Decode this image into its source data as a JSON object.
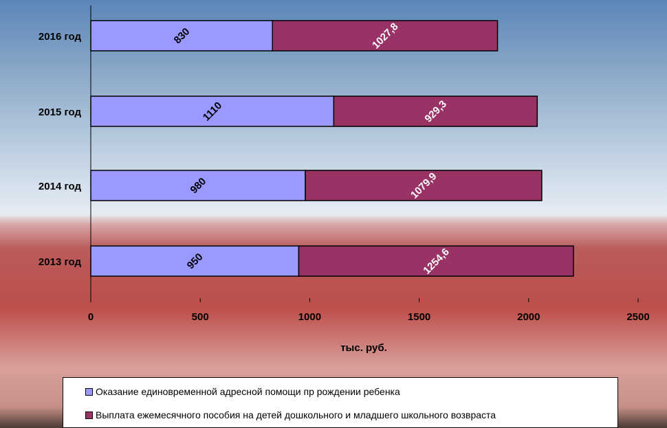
{
  "colors": {
    "series_0": "#9999ff",
    "series_1": "#993366"
  },
  "chart_data": {
    "type": "bar",
    "orientation": "horizontal",
    "stacked": true,
    "categories": [
      "2016 год",
      "2015 год",
      "2014 год",
      "2013 год"
    ],
    "series": [
      {
        "name": "Оказание единовременной адресной помощи пр рождении ребенка",
        "values": [
          830,
          1110,
          980,
          950
        ],
        "labels": [
          "830",
          "1110",
          "980",
          "950"
        ]
      },
      {
        "name": "Выплата ежемесячного пособия на детей дошкольного и младшего школьного возвраста",
        "values": [
          1027.8,
          929.3,
          1079.9,
          1254.6
        ],
        "labels": [
          "1027,8",
          "929,3",
          "1079,9",
          "1254,6"
        ]
      }
    ],
    "xlabel": "тыс. руб.",
    "xlim": [
      0,
      2500
    ],
    "xticks": [
      0,
      500,
      1000,
      1500,
      2000,
      2500
    ],
    "legend_position": "bottom"
  }
}
